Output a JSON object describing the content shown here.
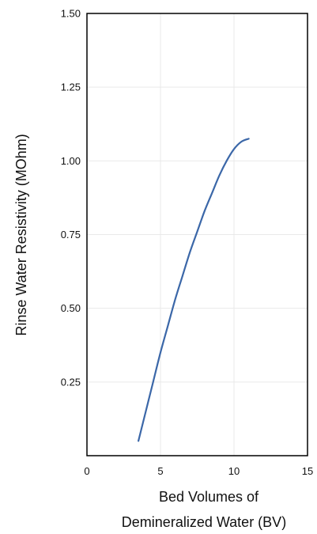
{
  "chart_data": {
    "type": "line",
    "xlabel_lines": [
      "Bed Volumes of",
      "Demineralized Water (BV)"
    ],
    "ylabel": "Rinse Water Resistivity (MOhm)",
    "xlim": [
      0,
      15
    ],
    "ylim": [
      0,
      1.5
    ],
    "x_ticks": [
      0,
      5,
      10,
      15
    ],
    "x_tick_labels": [
      "0",
      "5",
      "10",
      "15"
    ],
    "y_ticks": [
      0.25,
      0.5,
      0.75,
      1.0,
      1.25,
      1.5
    ],
    "y_tick_labels": [
      "0.25",
      "0.50",
      "0.75",
      "1.00",
      "1.25",
      "1.50"
    ],
    "grid": true,
    "series": [
      {
        "color": "#3b67a8",
        "x": [
          3.5,
          4.0,
          4.5,
          5.0,
          5.5,
          6.0,
          6.5,
          7.0,
          7.5,
          8.0,
          8.5,
          9.0,
          9.5,
          10.0,
          10.5,
          11.0
        ],
        "y": [
          0.05,
          0.15,
          0.25,
          0.35,
          0.44,
          0.53,
          0.61,
          0.69,
          0.76,
          0.83,
          0.89,
          0.95,
          1.0,
          1.04,
          1.065,
          1.075
        ]
      }
    ]
  }
}
